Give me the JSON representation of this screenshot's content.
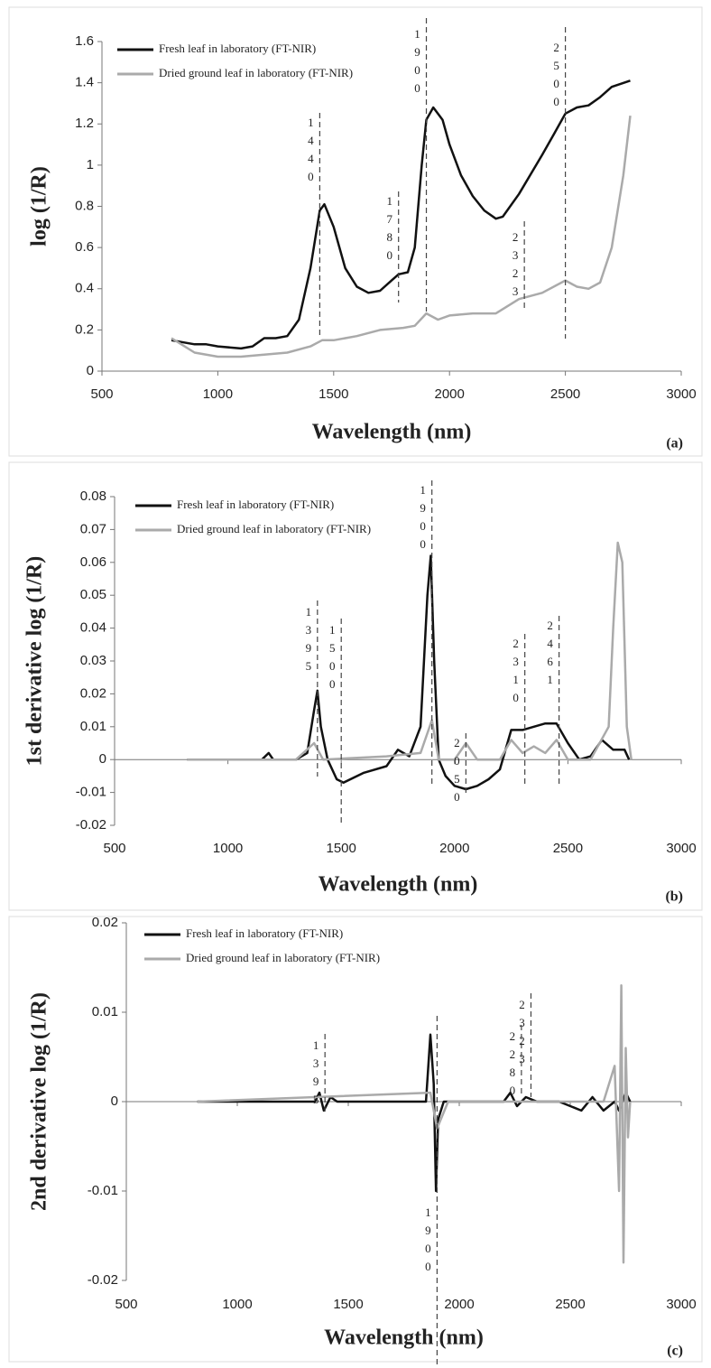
{
  "chart_data": [
    {
      "type": "line",
      "panel_label": "(a)",
      "xlabel": "Wavelength (nm)",
      "ylabel": "log (1/R)",
      "xlim": [
        500,
        3000
      ],
      "xticks": [
        500,
        1000,
        1500,
        2000,
        2500,
        3000
      ],
      "ylim": [
        0,
        1.6
      ],
      "yticks": [
        0,
        0.2,
        0.4,
        0.6,
        0.8,
        1,
        1.2,
        1.4,
        1.6
      ],
      "legend": "upper left",
      "series": [
        {
          "name": "Fresh leaf in laboratory (FT-NIR)",
          "color": "#111111",
          "x": [
            800,
            900,
            950,
            1000,
            1100,
            1150,
            1200,
            1250,
            1300,
            1350,
            1400,
            1440,
            1460,
            1500,
            1550,
            1600,
            1650,
            1700,
            1750,
            1780,
            1820,
            1850,
            1880,
            1900,
            1930,
            1970,
            2000,
            2050,
            2100,
            2150,
            2200,
            2230,
            2300,
            2400,
            2450,
            2500,
            2550,
            2600,
            2650,
            2700,
            2780
          ],
          "values": [
            0.15,
            0.13,
            0.13,
            0.12,
            0.11,
            0.12,
            0.16,
            0.16,
            0.17,
            0.25,
            0.5,
            0.78,
            0.81,
            0.7,
            0.5,
            0.41,
            0.38,
            0.39,
            0.44,
            0.47,
            0.48,
            0.6,
            1.0,
            1.22,
            1.28,
            1.22,
            1.1,
            0.95,
            0.85,
            0.78,
            0.74,
            0.75,
            0.86,
            1.05,
            1.15,
            1.25,
            1.28,
            1.29,
            1.33,
            1.38,
            1.41
          ]
        },
        {
          "name": "Dried ground leaf in laboratory (FT-NIR)",
          "color": "#aaaaaa",
          "x": [
            800,
            900,
            1000,
            1100,
            1200,
            1300,
            1400,
            1450,
            1500,
            1600,
            1700,
            1800,
            1850,
            1900,
            1950,
            2000,
            2100,
            2200,
            2300,
            2400,
            2500,
            2550,
            2600,
            2650,
            2700,
            2750,
            2780
          ],
          "values": [
            0.16,
            0.09,
            0.07,
            0.07,
            0.08,
            0.09,
            0.12,
            0.15,
            0.15,
            0.17,
            0.2,
            0.21,
            0.22,
            0.28,
            0.25,
            0.27,
            0.28,
            0.28,
            0.35,
            0.38,
            0.44,
            0.41,
            0.4,
            0.43,
            0.6,
            0.95,
            1.24
          ]
        }
      ],
      "annotations": [
        {
          "x": 1440,
          "label": "1440"
        },
        {
          "x": 1780,
          "label": "1780"
        },
        {
          "x": 1900,
          "label": "1900"
        },
        {
          "x": 2500,
          "label": "2500"
        },
        {
          "x": 2323,
          "label": "2323"
        }
      ]
    },
    {
      "type": "line",
      "panel_label": "(b)",
      "xlabel": "Wavelength (nm)",
      "ylabel": "1st derivative log (1/R)",
      "xlim": [
        500,
        3000
      ],
      "xticks": [
        500,
        1000,
        1500,
        2000,
        2500,
        3000
      ],
      "ylim": [
        -0.02,
        0.08
      ],
      "yticks": [
        -0.02,
        -0.01,
        0,
        0.01,
        0.02,
        0.03,
        0.04,
        0.05,
        0.06,
        0.07,
        0.08
      ],
      "legend": "upper left",
      "series": [
        {
          "name": "Fresh leaf in laboratory (FT-NIR)",
          "color": "#111111",
          "x": [
            820,
            1000,
            1150,
            1180,
            1200,
            1300,
            1350,
            1380,
            1395,
            1410,
            1440,
            1480,
            1510,
            1600,
            1700,
            1750,
            1800,
            1850,
            1880,
            1895,
            1910,
            1930,
            1960,
            2000,
            2050,
            2100,
            2150,
            2200,
            2250,
            2300,
            2350,
            2400,
            2450,
            2500,
            2550,
            2600,
            2650,
            2700,
            2750,
            2770
          ],
          "values": [
            0,
            0,
            0,
            0.002,
            0,
            0,
            0.002,
            0.015,
            0.021,
            0.01,
            0,
            -0.006,
            -0.007,
            -0.004,
            -0.002,
            0.003,
            0.001,
            0.01,
            0.05,
            0.062,
            0.03,
            0,
            -0.005,
            -0.008,
            -0.009,
            -0.008,
            -0.006,
            -0.003,
            0.009,
            0.009,
            0.01,
            0.011,
            0.011,
            0.005,
            0,
            0.001,
            0.006,
            0.003,
            0.003,
            0
          ]
        },
        {
          "name": "Dried ground leaf in laboratory (FT-NIR)",
          "color": "#aaaaaa",
          "x": [
            820,
            1300,
            1380,
            1420,
            1700,
            1850,
            1900,
            1930,
            2000,
            2050,
            2100,
            2200,
            2250,
            2300,
            2350,
            2400,
            2450,
            2500,
            2600,
            2680,
            2700,
            2720,
            2740,
            2760,
            2780
          ],
          "values": [
            0,
            0,
            0.005,
            0,
            0.001,
            0.002,
            0.012,
            0,
            0,
            0.005,
            0,
            0,
            0.006,
            0.002,
            0.004,
            0.002,
            0.006,
            0,
            0,
            0.01,
            0.04,
            0.066,
            0.06,
            0.01,
            0
          ]
        }
      ],
      "annotations": [
        {
          "x": 1395,
          "label": "1395"
        },
        {
          "x": 1500,
          "label": "1500"
        },
        {
          "x": 1900,
          "label": "1900"
        },
        {
          "x": 2050,
          "label": "2050"
        },
        {
          "x": 2310,
          "label": "2310"
        },
        {
          "x": 2461,
          "label": "2461"
        }
      ]
    },
    {
      "type": "line",
      "panel_label": "(c)",
      "xlabel": "Wavelength (nm)",
      "ylabel": "2nd derivative log (1/R)",
      "xlim": [
        500,
        3000
      ],
      "xticks": [
        500,
        1000,
        1500,
        2000,
        2500,
        3000
      ],
      "ylim": [
        -0.02,
        0.02
      ],
      "yticks": [
        -0.02,
        -0.01,
        0,
        0.01,
        0.02
      ],
      "legend": "upper left",
      "series": [
        {
          "name": "Fresh leaf in laboratory (FT-NIR)",
          "color": "#111111",
          "x": [
            820,
            1350,
            1370,
            1390,
            1420,
            1450,
            1850,
            1870,
            1885,
            1895,
            1905,
            1930,
            2200,
            2230,
            2260,
            2300,
            2350,
            2450,
            2550,
            2600,
            2650,
            2700,
            2720,
            2750,
            2770
          ],
          "values": [
            0,
            0,
            0.001,
            -0.001,
            0.0005,
            0,
            0,
            0.0075,
            0.002,
            -0.01,
            -0.002,
            0,
            0,
            0.001,
            -0.0005,
            0.0005,
            0,
            0,
            -0.001,
            0.0005,
            -0.001,
            0,
            -0.001,
            0.001,
            0
          ]
        },
        {
          "name": "Dried ground leaf in laboratory (FT-NIR)",
          "color": "#aaaaaa",
          "x": [
            820,
            1870,
            1900,
            1950,
            2650,
            2700,
            2720,
            2730,
            2740,
            2750,
            2760,
            2770
          ],
          "values": [
            0,
            0.001,
            -0.003,
            0,
            0,
            0.004,
            -0.01,
            0.013,
            -0.018,
            0.006,
            -0.004,
            0
          ]
        }
      ],
      "annotations": [
        {
          "x": 1395,
          "label": "1395"
        },
        {
          "x": 1900,
          "label": "1900"
        },
        {
          "x": 2280,
          "label": "2280"
        },
        {
          "x": 2323,
          "label": "2323"
        }
      ]
    }
  ]
}
